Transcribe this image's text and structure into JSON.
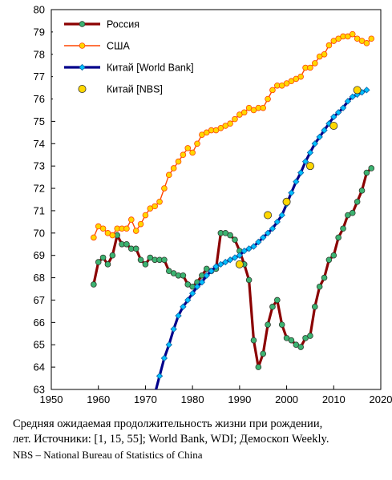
{
  "chart_data": {
    "type": "line",
    "title": "",
    "xlabel": "",
    "ylabel": "",
    "xlim": [
      1950,
      2020
    ],
    "ylim": [
      63,
      80
    ],
    "x_ticks": [
      1950,
      1960,
      1970,
      1980,
      1990,
      2000,
      2010,
      2020
    ],
    "y_ticks": [
      63,
      64,
      65,
      66,
      67,
      68,
      69,
      70,
      71,
      72,
      73,
      74,
      75,
      76,
      77,
      78,
      79,
      80
    ],
    "grid": false,
    "legend_position": "top-left",
    "series": [
      {
        "name": "Россия",
        "color": "#8b0000",
        "marker_color": "#3cb371",
        "marker": "circle",
        "x": [
          1959,
          1960,
          1961,
          1962,
          1963,
          1964,
          1965,
          1966,
          1967,
          1968,
          1969,
          1970,
          1971,
          1972,
          1973,
          1974,
          1975,
          1976,
          1977,
          1978,
          1979,
          1980,
          1981,
          1982,
          1983,
          1984,
          1985,
          1986,
          1987,
          1988,
          1989,
          1990,
          1991,
          1992,
          1993,
          1994,
          1995,
          1996,
          1997,
          1998,
          1999,
          2000,
          2001,
          2002,
          2003,
          2004,
          2005,
          2006,
          2007,
          2008,
          2009,
          2010,
          2011,
          2012,
          2013,
          2014,
          2015,
          2016,
          2017,
          2018
        ],
        "values": [
          67.7,
          68.7,
          68.9,
          68.6,
          69.0,
          69.9,
          69.5,
          69.5,
          69.3,
          69.3,
          68.8,
          68.6,
          68.9,
          68.8,
          68.8,
          68.8,
          68.3,
          68.2,
          68.1,
          68.1,
          67.7,
          67.6,
          67.8,
          68.1,
          68.4,
          68.3,
          68.4,
          70.0,
          70.0,
          69.9,
          69.7,
          69.2,
          68.6,
          67.9,
          65.2,
          64.0,
          64.6,
          65.9,
          66.7,
          67.0,
          65.9,
          65.3,
          65.2,
          65.0,
          64.9,
          65.3,
          65.4,
          66.7,
          67.6,
          68.0,
          68.8,
          69.0,
          69.8,
          70.2,
          70.8,
          70.9,
          71.4,
          71.9,
          72.7,
          72.9
        ]
      },
      {
        "name": "США",
        "color": "#ff4500",
        "marker_color": "#ffd700",
        "marker": "circle",
        "x": [
          1959,
          1960,
          1961,
          1962,
          1963,
          1964,
          1965,
          1966,
          1967,
          1968,
          1969,
          1970,
          1971,
          1972,
          1973,
          1974,
          1975,
          1976,
          1977,
          1978,
          1979,
          1980,
          1981,
          1982,
          1983,
          1984,
          1985,
          1986,
          1987,
          1988,
          1989,
          1990,
          1991,
          1992,
          1993,
          1994,
          1995,
          1996,
          1997,
          1998,
          1999,
          2000,
          2001,
          2002,
          2003,
          2004,
          2005,
          2006,
          2007,
          2008,
          2009,
          2010,
          2011,
          2012,
          2013,
          2014,
          2015,
          2016,
          2017,
          2018
        ],
        "values": [
          69.8,
          70.3,
          70.2,
          70.0,
          69.9,
          70.2,
          70.2,
          70.2,
          70.6,
          70.1,
          70.4,
          70.8,
          71.1,
          71.2,
          71.4,
          72.0,
          72.6,
          72.9,
          73.2,
          73.5,
          73.8,
          73.6,
          74.0,
          74.4,
          74.5,
          74.6,
          74.6,
          74.7,
          74.8,
          74.9,
          75.1,
          75.3,
          75.4,
          75.6,
          75.5,
          75.6,
          75.6,
          76.0,
          76.4,
          76.6,
          76.6,
          76.7,
          76.8,
          76.9,
          77.0,
          77.4,
          77.4,
          77.6,
          77.9,
          78.0,
          78.4,
          78.6,
          78.7,
          78.8,
          78.8,
          78.9,
          78.7,
          78.6,
          78.5,
          78.7
        ]
      },
      {
        "name": "Китай [World Bank]",
        "color": "#00008b",
        "marker_color": "#00bfff",
        "marker": "diamond",
        "x": [
          1972,
          1973,
          1974,
          1975,
          1976,
          1977,
          1978,
          1979,
          1980,
          1981,
          1982,
          1983,
          1984,
          1985,
          1986,
          1987,
          1988,
          1989,
          1990,
          1991,
          1992,
          1993,
          1994,
          1995,
          1996,
          1997,
          1998,
          1999,
          2000,
          2001,
          2002,
          2003,
          2004,
          2005,
          2006,
          2007,
          2008,
          2009,
          2010,
          2011,
          2012,
          2013,
          2014,
          2015,
          2016,
          2017
        ],
        "values": [
          62.8,
          63.6,
          64.4,
          65.0,
          65.7,
          66.3,
          66.7,
          67.0,
          67.3,
          67.6,
          67.8,
          68.1,
          68.3,
          68.5,
          68.6,
          68.7,
          68.8,
          68.9,
          69.0,
          69.2,
          69.3,
          69.4,
          69.6,
          69.8,
          70.0,
          70.2,
          70.5,
          70.8,
          71.3,
          71.8,
          72.3,
          72.7,
          73.2,
          73.6,
          74.0,
          74.3,
          74.6,
          74.9,
          75.2,
          75.4,
          75.6,
          75.9,
          76.1,
          76.2,
          76.3,
          76.4
        ]
      },
      {
        "name": "Китай [NBS]",
        "color": "#ffd700",
        "marker_color": "#ffd700",
        "marker": "circle",
        "x": [
          1990,
          1996,
          2000,
          2005,
          2010,
          2015
        ],
        "values": [
          68.6,
          70.8,
          71.4,
          73.0,
          74.8,
          76.4
        ]
      }
    ]
  },
  "caption": {
    "line1": "Средняя ожидаемая продолжительность жизни при рождении,",
    "line2": "лет. Источники: [1, 15, 55]; World Bank, WDI; Демоскоп Weekly.",
    "line3": "NBS – National Bureau of Statistics of China"
  }
}
